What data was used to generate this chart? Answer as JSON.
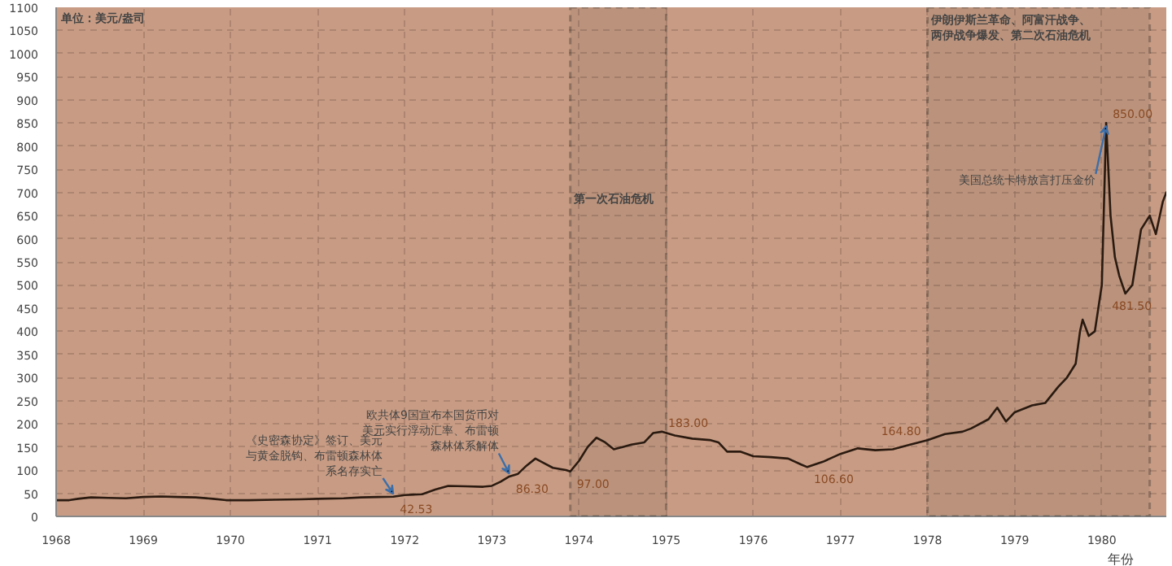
{
  "chart_data": {
    "type": "line",
    "xlabel": "年份",
    "x": [
      1968.0,
      1968.15,
      1968.25,
      1968.4,
      1968.6,
      1968.8,
      1969.0,
      1969.2,
      1969.4,
      1969.6,
      1969.8,
      1969.95,
      1970.2,
      1970.5,
      1970.8,
      1971.0,
      1971.3,
      1971.5,
      1971.7,
      1971.87,
      1972.0,
      1972.2,
      1972.35,
      1972.5,
      1972.7,
      1972.9,
      1973.0,
      1973.1,
      1973.2,
      1973.3,
      1973.4,
      1973.5,
      1973.6,
      1973.7,
      1973.85,
      1973.9,
      1974.0,
      1974.1,
      1974.2,
      1974.3,
      1974.4,
      1974.5,
      1974.6,
      1974.75,
      1974.85,
      1974.95,
      1975.1,
      1975.3,
      1975.5,
      1975.6,
      1975.7,
      1975.85,
      1976.0,
      1976.2,
      1976.4,
      1976.55,
      1976.62,
      1976.8,
      1977.0,
      1977.2,
      1977.4,
      1977.6,
      1977.8,
      1978.0,
      1978.2,
      1978.4,
      1978.5,
      1978.7,
      1978.8,
      1978.9,
      1979.0,
      1979.2,
      1979.35,
      1979.5,
      1979.6,
      1979.7,
      1979.75,
      1979.78,
      1979.85,
      1979.92,
      1980.0,
      1980.05,
      1980.1,
      1980.15,
      1980.2,
      1980.27,
      1980.35,
      1980.45,
      1980.55,
      1980.62,
      1980.7,
      1980.74
    ],
    "series": [
      {
        "color": "#2b1a10",
        "values": [
          35,
          35,
          38,
          41,
          40,
          39,
          42,
          43,
          42,
          41,
          38,
          35,
          35,
          36,
          37,
          38,
          39,
          41,
          42,
          42.53,
          46,
          48,
          58,
          66,
          65,
          64,
          66,
          75,
          86.3,
          92,
          110,
          125,
          115,
          105,
          100,
          97,
          120,
          150,
          170,
          160,
          145,
          150,
          155,
          160,
          180,
          183,
          175,
          168,
          165,
          160,
          140,
          140,
          130,
          128,
          125,
          112,
          106.6,
          118,
          135,
          147,
          143,
          145,
          155,
          164.8,
          178,
          183,
          190,
          210,
          235,
          205,
          225,
          240,
          245,
          280,
          300,
          330,
          400,
          425,
          390,
          400,
          500,
          850,
          650,
          560,
          520,
          481.5,
          500,
          620,
          650,
          610,
          680,
          700
        ]
      }
    ],
    "xlim": [
      1968,
      1980.74
    ],
    "ylim": [
      0,
      1100
    ],
    "xticks": [
      1968,
      1969,
      1970,
      1971,
      1972,
      1973,
      1974,
      1975,
      1976,
      1977,
      1978,
      1979,
      1980
    ],
    "yticks": [
      0,
      50,
      100,
      150,
      200,
      250,
      300,
      350,
      400,
      450,
      500,
      550,
      600,
      650,
      700,
      750,
      800,
      850,
      900,
      950,
      1000,
      1050,
      1100
    ],
    "grid": true,
    "marker": "none",
    "line_style": "solid",
    "bands": [
      {
        "axis": "x",
        "from": 1973.9,
        "to": 1975.0,
        "label": "第一次石油危机",
        "color": "#1a1a1a"
      },
      {
        "axis": "x",
        "from": 1978.0,
        "to": 1980.55,
        "label": "伊朗伊斯兰革命、阿富汗战争、两伊战争爆发、第二次石油危机",
        "color": "#1a1a1a"
      }
    ],
    "annotations": [
      "单位：美元/盎司",
      {
        "text": "42.53",
        "x": 1971.87,
        "y": 42.53
      },
      {
        "text": "86.30",
        "x": 1973.2,
        "y": 86.3
      },
      {
        "text": "97.00",
        "x": 1973.9,
        "y": 97
      },
      {
        "text": "183.00",
        "x": 1974.95,
        "y": 183
      },
      {
        "text": "106.60",
        "x": 1976.62,
        "y": 106.6
      },
      {
        "text": "164.80",
        "x": 1978.0,
        "y": 164.8
      },
      {
        "text": "850.00",
        "x": 1980.05,
        "y": 850
      },
      {
        "text": "481.50",
        "x": 1980.27,
        "y": 481.5
      },
      {
        "text": "《史密森协定》签订、美元与黄金脱钩、布雷顿森林体系名存实亡",
        "x": 1971.87,
        "y": 42.53
      },
      {
        "text": "欧共体9国宣布本国货币对美元实行浮动汇率、布雷顿森林体系解体",
        "x": 1973.2,
        "y": 86.3
      },
      {
        "text": "美国总统卡特放言打压金价",
        "x": 1980.05,
        "y": 850
      }
    ]
  }
}
